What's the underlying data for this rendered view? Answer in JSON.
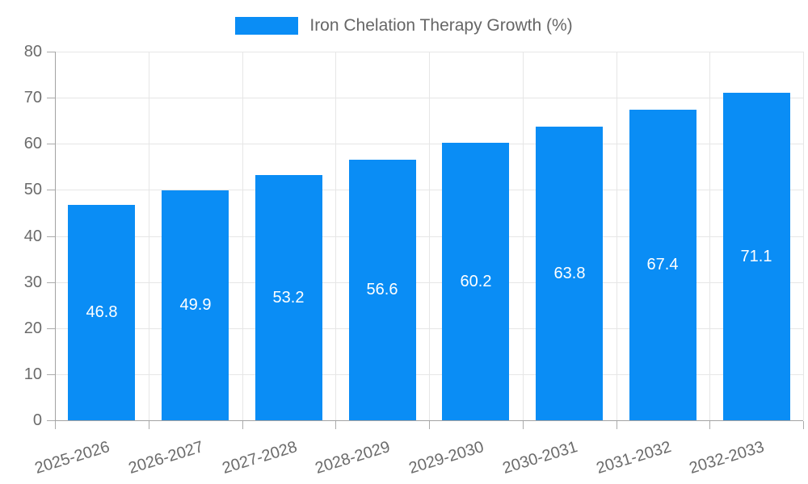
{
  "legend": {
    "position": "top"
  },
  "chart_data": {
    "type": "bar",
    "title": "Iron Chelation Therapy Growth (%)",
    "categories": [
      "2025-2026",
      "2026-2027",
      "2027-2028",
      "2028-2029",
      "2029-2030",
      "2030-2031",
      "2031-2032",
      "2032-2033"
    ],
    "values": [
      46.8,
      49.9,
      53.2,
      56.6,
      60.2,
      63.8,
      67.4,
      71.1
    ],
    "xlabel": "",
    "ylabel": "",
    "ylim": [
      0,
      80
    ],
    "yticks": [
      0,
      10,
      20,
      30,
      40,
      50,
      60,
      70,
      80
    ],
    "grid": true,
    "legend_position": "top",
    "bar_color": "#0a8df5",
    "value_label_color": "#ffffff",
    "value_labels_shown": true,
    "value_label_position": "bar-center",
    "x_tick_rotation_deg": -17
  }
}
